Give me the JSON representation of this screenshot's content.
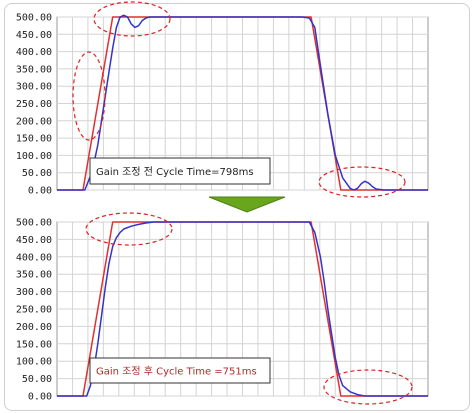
{
  "chart_data": [
    {
      "type": "line",
      "ylim": [
        0,
        500
      ],
      "yticks": [
        "500.00",
        "450.00",
        "400.00",
        "350.00",
        "300.00",
        "250.00",
        "200.00",
        "150.00",
        "100.00",
        "50.00",
        "0.00"
      ],
      "xlim": [
        0,
        100
      ],
      "grid": true,
      "annotation": "Gain 조정 전 Cycle Time=798ms",
      "annotation_color": "#222222",
      "series": [
        {
          "color": "#e03030",
          "x": [
            0,
            7.0,
            15.0,
            68.5,
            76.5,
            100
          ],
          "y": [
            0,
            0,
            500,
            500,
            0,
            0
          ]
        },
        {
          "color": "#3333cc",
          "x": [
            0,
            7.5,
            9,
            10,
            11,
            12,
            13,
            14,
            15,
            16,
            17,
            18,
            19,
            20,
            21,
            22,
            23,
            24,
            25,
            26,
            28,
            30,
            66,
            68,
            69.5,
            71,
            73,
            75,
            77,
            79,
            80,
            81,
            82,
            83,
            84,
            85,
            86,
            88,
            100
          ],
          "y": [
            0,
            0,
            40,
            80,
            130,
            200,
            270,
            340,
            410,
            470,
            500,
            505,
            500,
            480,
            470,
            475,
            490,
            497,
            500,
            500,
            500,
            500,
            500,
            497,
            470,
            360,
            220,
            100,
            35,
            5,
            0,
            5,
            18,
            25,
            20,
            10,
            3,
            0,
            0
          ]
        }
      ]
    },
    {
      "type": "line",
      "ylim": [
        0,
        500
      ],
      "yticks": [
        "500.00",
        "450.00",
        "400.00",
        "350.00",
        "300.00",
        "250.00",
        "200.00",
        "150.00",
        "100.00",
        "50.00",
        "0.00"
      ],
      "xlim": [
        0,
        100
      ],
      "grid": true,
      "annotation": "Gain 조정 후 Cycle Time =751ms",
      "annotation_color": "#b42828",
      "series": [
        {
          "color": "#e03030",
          "x": [
            0,
            7.0,
            15.0,
            68.5,
            76.5,
            100
          ],
          "y": [
            0,
            0,
            500,
            500,
            0,
            0
          ]
        },
        {
          "color": "#3333cc",
          "x": [
            0,
            8,
            9,
            10,
            11,
            12,
            13,
            14,
            15,
            16,
            17,
            18,
            20,
            22,
            24,
            26,
            30,
            68,
            69.5,
            71,
            72,
            73,
            74,
            75,
            76,
            77,
            79,
            81,
            83,
            86,
            100
          ],
          "y": [
            0,
            0,
            30,
            80,
            150,
            230,
            310,
            380,
            430,
            455,
            470,
            480,
            488,
            493,
            497,
            500,
            500,
            500,
            470,
            400,
            330,
            250,
            180,
            110,
            60,
            30,
            12,
            4,
            0,
            0,
            0
          ]
        }
      ]
    }
  ]
}
